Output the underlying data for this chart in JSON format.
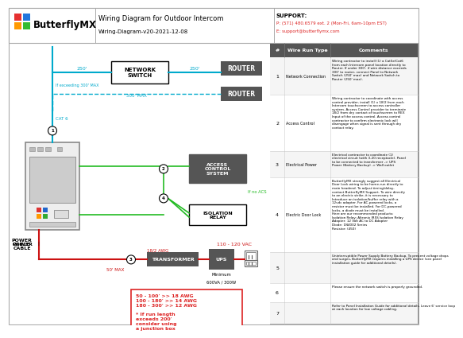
{
  "title": "Wiring Diagram for Outdoor Intercom",
  "subtitle": "Wiring-Diagram-v20-2021-12-08",
  "logo_text": "ButterflyMX",
  "support_title": "SUPPORT:",
  "support_phone": "P: (571) 480.6579 ext. 2 (Mon-Fri, 6am-10pm EST)",
  "support_email": "E: support@butterflymx.com",
  "bg_color": "#ffffff",
  "cyan": "#00aacc",
  "green": "#22bb22",
  "red_color": "#cc1111",
  "dark_gray": "#555555",
  "table_header_bg": "#555555",
  "wire_rows": [
    {
      "num": "1",
      "type": "Network Connection",
      "comment": "Wiring contractor to install (1) a Cat5e/Cat6\nfrom each Intercom panel location directly to\nRouter. If under 300', if wire distance exceeds\n300' to router, connect Panel to Network\nSwitch (250' max) and Network Switch to\nRouter (250' max)."
    },
    {
      "num": "2",
      "type": "Access Control",
      "comment": "Wiring contractor to coordinate with access\ncontrol provider, install (1) x 18/2 from each\nIntercom touchscreen to access controller\nsystem. Access Control provider to terminate\n18/2 from dry contact of touchscreen to REX\nInput of the access control. Access control\ncontractor to confirm electronic lock will\ndisengage when signal is sent through dry\ncontact relay."
    },
    {
      "num": "3",
      "type": "Electrical Power",
      "comment": "Electrical contractor to coordinate (1)\nelectrical circuit (with 3-20 receptacle). Panel\nto be connected to transformer -> UPS\nPower (Battery Backup) -> Wall outlet"
    },
    {
      "num": "4",
      "type": "Electric Door Lock",
      "comment": "ButterflyMX strongly suggest all Electrical\nDoor Lock wiring to be home-run directly to\nmain headend. To adjust timing/delay,\ncontact ButterflyMX Support. To wire directly\nto an electric strike, it is necessary to\nIntroduce an isolation/buffer relay with a\n12vdc adapter. For AC-powered locks, a\nresistor must be installed. For DC-powered\nlocks, a diode must be installed.\nHere are our recommended products:\nIsolation Relay: Altronix IR5S Isolation Relay\nAdapter: 12 Volt AC to DC Adapter\nDiode: 1N4002 Series\nResistor: (450)"
    },
    {
      "num": "5",
      "type": "",
      "comment": "Uninterruptible Power Supply Battery Backup. To prevent voltage drops\nand surges, ButterflyMX requires installing a UPS device (see panel\ninstallation guide for additional details)."
    },
    {
      "num": "6",
      "type": "",
      "comment": "Please ensure the network switch is properly grounded."
    },
    {
      "num": "7",
      "type": "",
      "comment": "Refer to Panel Installation Guide for additional details. Leave 6' service loop\nat each location for low voltage cabling."
    }
  ],
  "red_box_text": "50 - 100' >> 18 AWG\n100 - 180' >> 14 AWG\n180 - 300' >> 12 AWG\n\n* If run length\nexceeds 200'\nconsider using\na junction box"
}
